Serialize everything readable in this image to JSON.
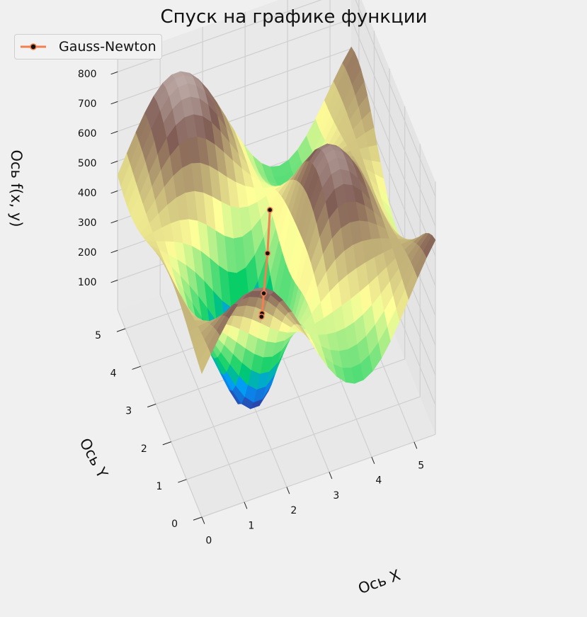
{
  "chart_data": {
    "type": "surface3d",
    "title": "Спуск на графике функции",
    "xlabel": "Ось X",
    "ylabel": "Ось Y",
    "zlabel": "Ось f(x, y)",
    "xlim": [
      0,
      5.5
    ],
    "ylim": [
      0,
      5.5
    ],
    "zlim": [
      0,
      850
    ],
    "x_ticks": [
      "0",
      "1",
      "2",
      "3",
      "4",
      "5"
    ],
    "y_ticks": [
      "0",
      "1",
      "2",
      "3",
      "4",
      "5"
    ],
    "z_ticks": [
      "100",
      "200",
      "300",
      "400",
      "500",
      "600",
      "700",
      "800"
    ],
    "colormap": "terrain",
    "grid": true,
    "legend": {
      "position": "top-left",
      "entries": [
        "Gauss-Newton"
      ]
    },
    "series": [
      {
        "name": "Gauss-Newton",
        "color": "#f28050",
        "marker_color": "#111111",
        "points": [
          {
            "x": 2.9,
            "y": 3.6,
            "z": 180
          },
          {
            "x": 2.7,
            "y": 3.2,
            "z": 95
          },
          {
            "x": 2.45,
            "y": 2.75,
            "z": 30
          },
          {
            "x": 2.3,
            "y": 2.45,
            "z": 8
          },
          {
            "x": 2.27,
            "y": 2.4,
            "z": 5
          }
        ]
      }
    ]
  }
}
